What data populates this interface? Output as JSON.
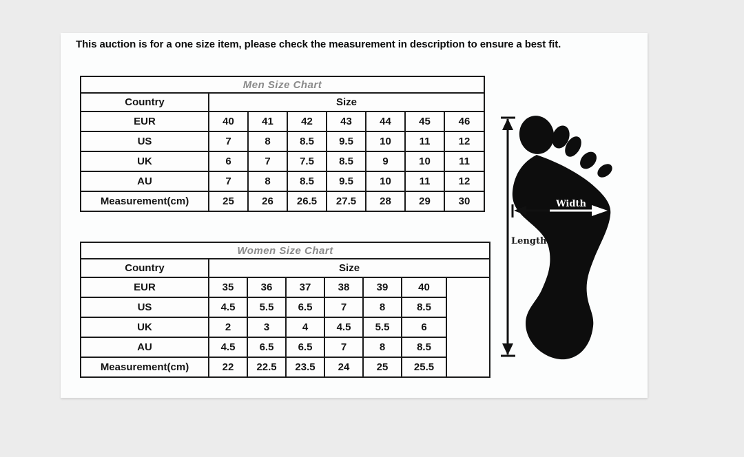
{
  "notice": "This auction is for a one size item, please check the measurement in description to ensure a best fit.",
  "men_chart": {
    "title": "Men Size Chart",
    "country_header": "Country",
    "size_header": "Size",
    "rows": [
      {
        "label": "EUR",
        "values": [
          "40",
          "41",
          "42",
          "43",
          "44",
          "45",
          "46"
        ]
      },
      {
        "label": "US",
        "values": [
          "7",
          "8",
          "8.5",
          "9.5",
          "10",
          "11",
          "12"
        ]
      },
      {
        "label": "UK",
        "values": [
          "6",
          "7",
          "7.5",
          "8.5",
          "9",
          "10",
          "11"
        ]
      },
      {
        "label": "AU",
        "values": [
          "7",
          "8",
          "8.5",
          "9.5",
          "10",
          "11",
          "12"
        ]
      },
      {
        "label": "Measurement(cm)",
        "values": [
          "25",
          "26",
          "26.5",
          "27.5",
          "28",
          "29",
          "30"
        ]
      }
    ]
  },
  "women_chart": {
    "title": "Women Size Chart",
    "country_header": "Country",
    "size_header": "Size",
    "rows": [
      {
        "label": "EUR",
        "values": [
          "35",
          "36",
          "37",
          "38",
          "39",
          "40"
        ]
      },
      {
        "label": "US",
        "values": [
          "4.5",
          "5.5",
          "6.5",
          "7",
          "8",
          "8.5"
        ]
      },
      {
        "label": "UK",
        "values": [
          "2",
          "3",
          "4",
          "4.5",
          "5.5",
          "6"
        ]
      },
      {
        "label": "AU",
        "values": [
          "4.5",
          "6.5",
          "6.5",
          "7",
          "8",
          "8.5"
        ]
      },
      {
        "label": "Measurement(cm)",
        "values": [
          "22",
          "22.5",
          "23.5",
          "24",
          "25",
          "25.5"
        ]
      }
    ]
  },
  "foot_diagram": {
    "width_label": "Width",
    "length_label": "Length"
  },
  "colors": {
    "page_background": "#ececec",
    "panel_background": "#fcfdfd",
    "table_border": "#1b1b1b",
    "table_title_text": "#8a8a8a",
    "table_text": "#141414",
    "foot_fill": "#0d0d0d",
    "arrow_color": "#111111"
  }
}
